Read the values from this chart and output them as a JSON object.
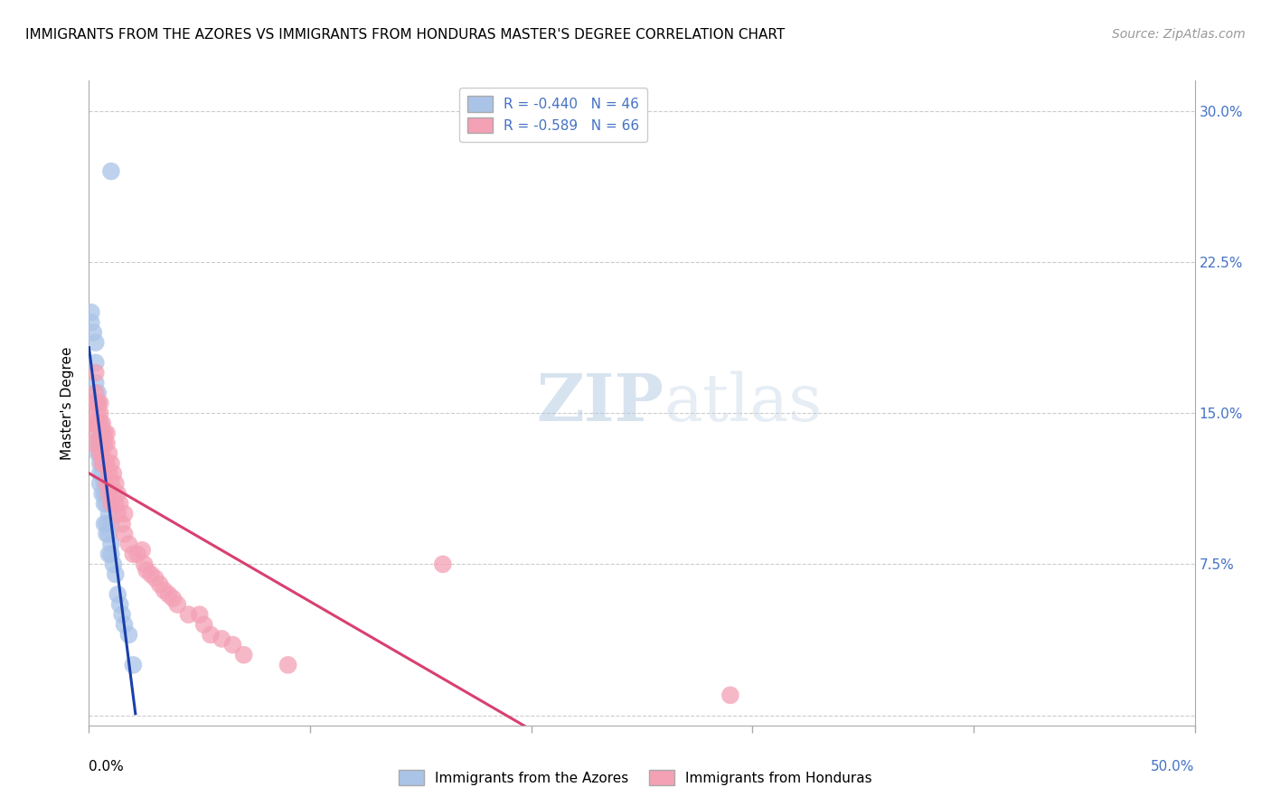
{
  "title": "IMMIGRANTS FROM THE AZORES VS IMMIGRANTS FROM HONDURAS MASTER'S DEGREE CORRELATION CHART",
  "source": "Source: ZipAtlas.com",
  "ylabel": "Master's Degree",
  "ytick_vals": [
    0.0,
    0.075,
    0.15,
    0.225,
    0.3
  ],
  "ytick_labels": [
    "",
    "7.5%",
    "15.0%",
    "22.5%",
    "30.0%"
  ],
  "xlim": [
    0.0,
    0.5
  ],
  "ylim": [
    -0.005,
    0.315
  ],
  "legend_entry1": "R = -0.440   N = 46",
  "legend_entry2": "R = -0.589   N = 66",
  "legend_label1": "Immigrants from the Azores",
  "legend_label2": "Immigrants from Honduras",
  "color_azores": "#aac4e8",
  "color_honduras": "#f4a0b5",
  "line_color_azores": "#1a3faa",
  "line_color_honduras": "#d84070",
  "watermark_zip": "ZIP",
  "watermark_atlas": "atlas",
  "title_fontsize": 11,
  "source_fontsize": 10,
  "axis_label_fontsize": 11,
  "tick_fontsize": 11,
  "azores_x": [
    0.01,
    0.001,
    0.001,
    0.002,
    0.003,
    0.003,
    0.003,
    0.004,
    0.004,
    0.004,
    0.004,
    0.004,
    0.005,
    0.005,
    0.005,
    0.005,
    0.005,
    0.005,
    0.005,
    0.006,
    0.006,
    0.006,
    0.006,
    0.006,
    0.007,
    0.007,
    0.007,
    0.007,
    0.008,
    0.008,
    0.008,
    0.008,
    0.009,
    0.009,
    0.009,
    0.01,
    0.01,
    0.01,
    0.011,
    0.012,
    0.013,
    0.014,
    0.015,
    0.016,
    0.018,
    0.02
  ],
  "azores_y": [
    0.27,
    0.2,
    0.195,
    0.19,
    0.185,
    0.175,
    0.165,
    0.16,
    0.155,
    0.145,
    0.135,
    0.13,
    0.145,
    0.14,
    0.135,
    0.13,
    0.125,
    0.12,
    0.115,
    0.14,
    0.135,
    0.125,
    0.12,
    0.11,
    0.115,
    0.11,
    0.105,
    0.095,
    0.11,
    0.105,
    0.095,
    0.09,
    0.1,
    0.09,
    0.08,
    0.095,
    0.085,
    0.08,
    0.075,
    0.07,
    0.06,
    0.055,
    0.05,
    0.045,
    0.04,
    0.025
  ],
  "honduras_x": [
    0.001,
    0.001,
    0.002,
    0.002,
    0.003,
    0.003,
    0.003,
    0.003,
    0.004,
    0.004,
    0.004,
    0.005,
    0.005,
    0.005,
    0.005,
    0.005,
    0.006,
    0.006,
    0.006,
    0.006,
    0.007,
    0.007,
    0.007,
    0.008,
    0.008,
    0.008,
    0.008,
    0.009,
    0.009,
    0.009,
    0.01,
    0.01,
    0.01,
    0.011,
    0.011,
    0.012,
    0.012,
    0.013,
    0.013,
    0.014,
    0.015,
    0.016,
    0.016,
    0.018,
    0.02,
    0.022,
    0.024,
    0.025,
    0.026,
    0.028,
    0.03,
    0.032,
    0.034,
    0.036,
    0.038,
    0.04,
    0.045,
    0.05,
    0.052,
    0.055,
    0.06,
    0.065,
    0.07,
    0.09,
    0.16,
    0.29
  ],
  "honduras_y": [
    0.145,
    0.135,
    0.155,
    0.145,
    0.17,
    0.16,
    0.155,
    0.145,
    0.155,
    0.15,
    0.14,
    0.155,
    0.15,
    0.145,
    0.135,
    0.13,
    0.145,
    0.14,
    0.13,
    0.125,
    0.14,
    0.135,
    0.125,
    0.14,
    0.135,
    0.125,
    0.115,
    0.13,
    0.12,
    0.11,
    0.125,
    0.115,
    0.105,
    0.12,
    0.11,
    0.115,
    0.105,
    0.11,
    0.1,
    0.105,
    0.095,
    0.1,
    0.09,
    0.085,
    0.08,
    0.08,
    0.082,
    0.075,
    0.072,
    0.07,
    0.068,
    0.065,
    0.062,
    0.06,
    0.058,
    0.055,
    0.05,
    0.05,
    0.045,
    0.04,
    0.038,
    0.035,
    0.03,
    0.025,
    0.075,
    0.01
  ],
  "background_color": "#ffffff",
  "grid_color": "#cccccc"
}
